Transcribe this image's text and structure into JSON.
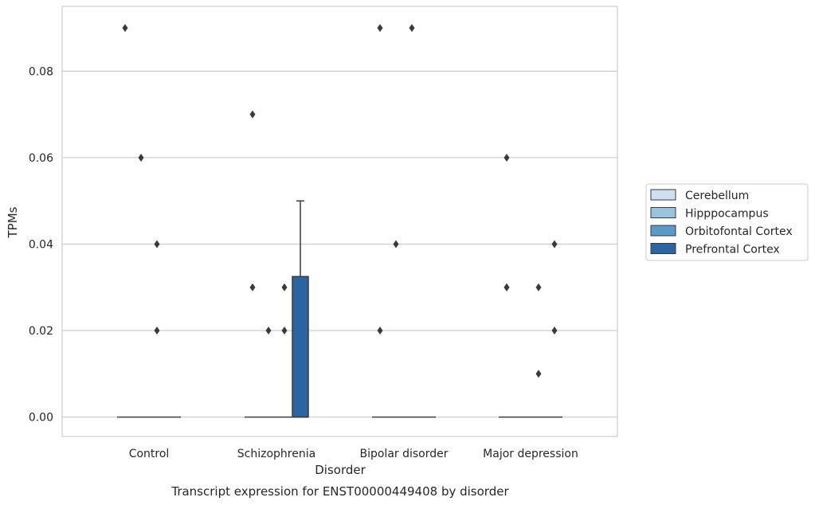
{
  "chart_data": {
    "type": "box",
    "xlabel": "Disorder",
    "ylabel": "TPMs",
    "caption": "Transcript expression for ENST00000449408 by disorder",
    "categories": [
      "Control",
      "Schizophrenia",
      "Bipolar disorder",
      "Major depression"
    ],
    "ylim": [
      -0.0045,
      0.095
    ],
    "yticks": [
      0.0,
      0.02,
      0.04,
      0.06,
      0.08
    ],
    "ytick_labels": [
      "0.00",
      "0.02",
      "0.04",
      "0.06",
      "0.08"
    ],
    "grid": true,
    "legend_position": "center-right",
    "series": [
      {
        "name": "Cerebellum",
        "color": "#cfdff0",
        "boxes": [
          {
            "category": "Control",
            "q1": 0,
            "median": 0,
            "q3": 0,
            "whisker_low": 0,
            "whisker_high": 0,
            "outliers": [
              0.09
            ]
          },
          {
            "category": "Schizophrenia",
            "q1": 0,
            "median": 0,
            "q3": 0,
            "whisker_low": 0,
            "whisker_high": 0,
            "outliers": [
              0.07,
              0.03
            ]
          },
          {
            "category": "Bipolar disorder",
            "q1": 0,
            "median": 0,
            "q3": 0,
            "whisker_low": 0,
            "whisker_high": 0,
            "outliers": [
              0.09,
              0.02
            ]
          },
          {
            "category": "Major depression",
            "q1": 0,
            "median": 0,
            "q3": 0,
            "whisker_low": 0,
            "whisker_high": 0,
            "outliers": [
              0.06,
              0.03,
              0.03
            ]
          }
        ]
      },
      {
        "name": "Hipppocampus",
        "color": "#9ac3de",
        "boxes": [
          {
            "category": "Control",
            "q1": 0,
            "median": 0,
            "q3": 0,
            "whisker_low": 0,
            "whisker_high": 0,
            "outliers": [
              0.06
            ]
          },
          {
            "category": "Schizophrenia",
            "q1": 0,
            "median": 0,
            "q3": 0,
            "whisker_low": 0,
            "whisker_high": 0,
            "outliers": [
              0.02
            ]
          },
          {
            "category": "Bipolar disorder",
            "q1": 0,
            "median": 0,
            "q3": 0,
            "whisker_low": 0,
            "whisker_high": 0,
            "outliers": [
              0.04
            ]
          },
          {
            "category": "Major depression",
            "q1": 0,
            "median": 0,
            "q3": 0,
            "whisker_low": 0,
            "whisker_high": 0,
            "outliers": []
          }
        ]
      },
      {
        "name": "Orbitofontal Cortex",
        "color": "#5a9ac8",
        "boxes": [
          {
            "category": "Control",
            "q1": 0,
            "median": 0,
            "q3": 0,
            "whisker_low": 0,
            "whisker_high": 0,
            "outliers": [
              0.04,
              0.02
            ]
          },
          {
            "category": "Schizophrenia",
            "q1": 0,
            "median": 0,
            "q3": 0,
            "whisker_low": 0,
            "whisker_high": 0,
            "outliers": [
              0.03,
              0.02
            ]
          },
          {
            "category": "Bipolar disorder",
            "q1": 0,
            "median": 0,
            "q3": 0,
            "whisker_low": 0,
            "whisker_high": 0,
            "outliers": [
              0.09
            ]
          },
          {
            "category": "Major depression",
            "q1": 0,
            "median": 0,
            "q3": 0,
            "whisker_low": 0,
            "whisker_high": 0,
            "outliers": [
              0.03,
              0.01
            ]
          }
        ]
      },
      {
        "name": "Prefrontal Cortex",
        "color": "#2a65a2",
        "boxes": [
          {
            "category": "Control",
            "q1": 0,
            "median": 0,
            "q3": 0,
            "whisker_low": 0,
            "whisker_high": 0,
            "outliers": []
          },
          {
            "category": "Schizophrenia",
            "q1": 0,
            "median": 0,
            "q3": 0.0325,
            "whisker_low": 0,
            "whisker_high": 0.05,
            "outliers": []
          },
          {
            "category": "Bipolar disorder",
            "q1": 0,
            "median": 0,
            "q3": 0,
            "whisker_low": 0,
            "whisker_high": 0,
            "outliers": []
          },
          {
            "category": "Major depression",
            "q1": 0,
            "median": 0,
            "q3": 0,
            "whisker_low": 0,
            "whisker_high": 0,
            "outliers": [
              0.04,
              0.02
            ]
          }
        ]
      }
    ]
  }
}
